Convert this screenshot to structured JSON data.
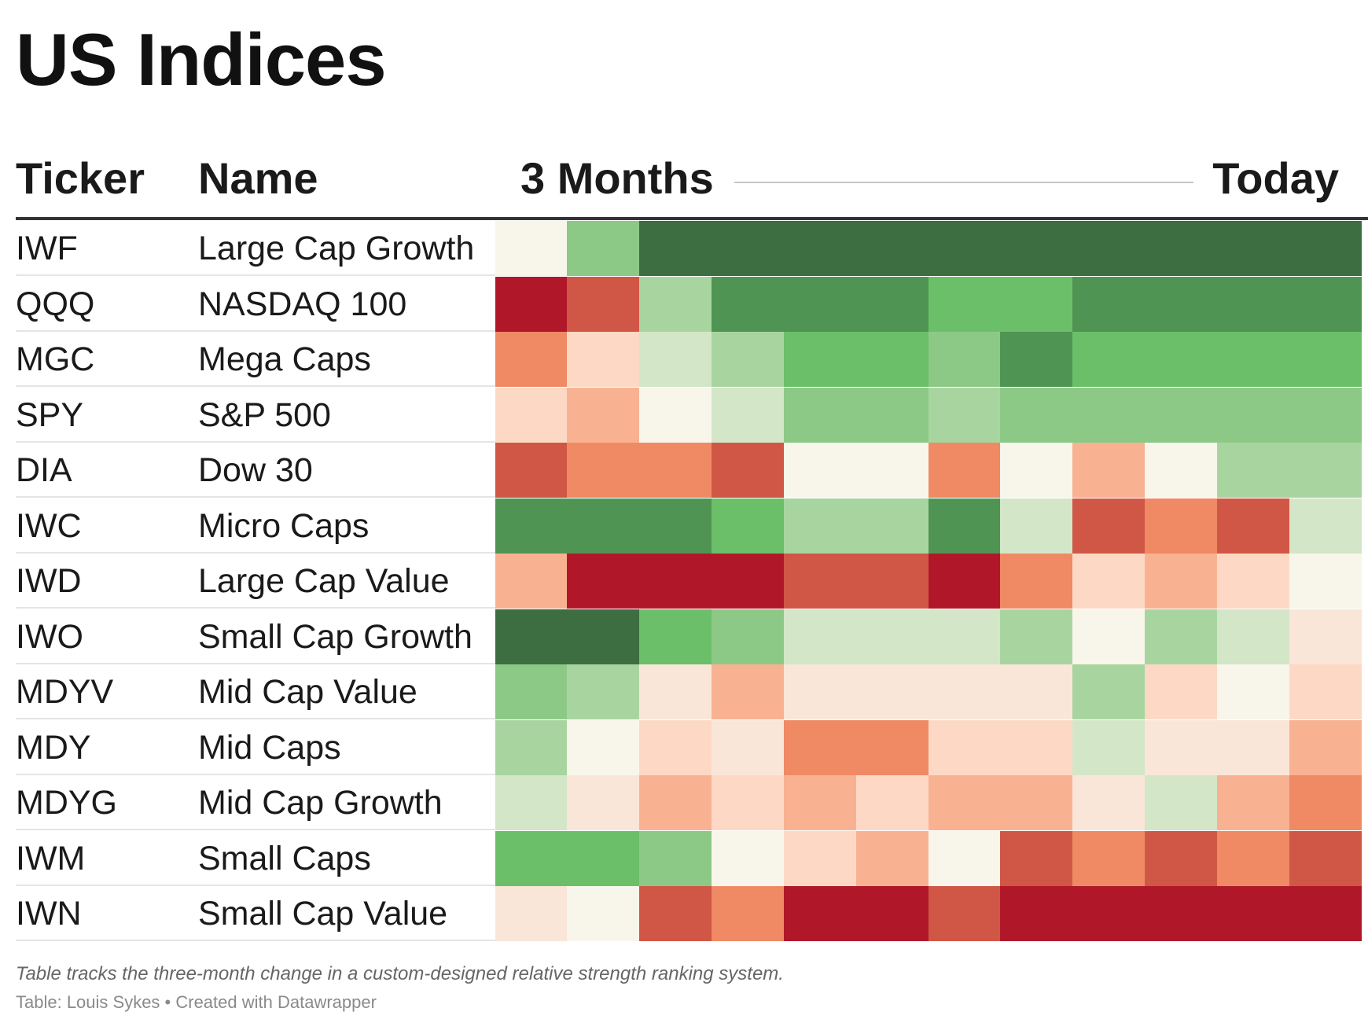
{
  "header": {
    "title": "US Indices",
    "col_ticker": "Ticker",
    "col_name": "Name",
    "period_start": "3 Months",
    "period_end": "Today"
  },
  "footer": {
    "note": "Table tracks the three-month change in a custom-designed relative strength ranking system.",
    "credit": "Table: Louis Sykes • Created with Datawrapper"
  },
  "palette": [
    "#b01829",
    "#d05746",
    "#ef8a64",
    "#f8b292",
    "#fdd9c5",
    "#fae6d8",
    "#f8f6ea",
    "#d3e6c7",
    "#a8d59f",
    "#8dc986",
    "#6bbf69",
    "#509453",
    "#3c6e42"
  ],
  "chart_data": {
    "type": "heatmap",
    "title": "US Indices",
    "xlabel": "",
    "ylabel": "",
    "x": [
      "3 Months",
      "",
      "",
      "",
      "",
      "",
      "",
      "",
      "",
      "",
      "",
      "Today"
    ],
    "color_scale_note": "",
    "rows": [
      {
        "ticker": "IWF",
        "name": "Large Cap Growth",
        "values": [
          6,
          9,
          12,
          12,
          12,
          12,
          12,
          12,
          12,
          12,
          12,
          12
        ]
      },
      {
        "ticker": "QQQ",
        "name": "NASDAQ 100",
        "values": [
          0,
          1,
          8,
          11,
          11,
          11,
          10,
          10,
          11,
          11,
          11,
          11
        ]
      },
      {
        "ticker": "MGC",
        "name": "Mega Caps",
        "values": [
          2,
          4,
          7,
          8,
          10,
          10,
          9,
          11,
          10,
          10,
          10,
          10
        ]
      },
      {
        "ticker": "SPY",
        "name": "S&P 500",
        "values": [
          4,
          3,
          6,
          7,
          9,
          9,
          8,
          9,
          9,
          9,
          9,
          9
        ]
      },
      {
        "ticker": "DIA",
        "name": "Dow 30",
        "values": [
          1,
          2,
          2,
          1,
          6,
          6,
          2,
          6,
          3,
          6,
          8,
          8
        ]
      },
      {
        "ticker": "IWC",
        "name": "Micro Caps",
        "values": [
          11,
          11,
          11,
          10,
          8,
          8,
          11,
          7,
          1,
          2,
          1,
          7
        ]
      },
      {
        "ticker": "IWD",
        "name": "Large Cap Value",
        "values": [
          3,
          0,
          0,
          0,
          1,
          1,
          0,
          2,
          4,
          3,
          4,
          6
        ]
      },
      {
        "ticker": "IWO",
        "name": "Small Cap Growth",
        "values": [
          12,
          12,
          10,
          9,
          7,
          7,
          7,
          8,
          6,
          8,
          7,
          5
        ]
      },
      {
        "ticker": "MDYV",
        "name": "Mid Cap Value",
        "values": [
          9,
          8,
          5,
          3,
          5,
          5,
          5,
          5,
          8,
          4,
          6,
          4
        ]
      },
      {
        "ticker": "MDY",
        "name": "Mid Caps",
        "values": [
          8,
          6,
          4,
          5,
          2,
          2,
          4,
          4,
          7,
          5,
          5,
          3
        ]
      },
      {
        "ticker": "MDYG",
        "name": "Mid Cap Growth",
        "values": [
          7,
          5,
          3,
          4,
          3,
          4,
          3,
          3,
          5,
          7,
          3,
          2
        ]
      },
      {
        "ticker": "IWM",
        "name": "Small Caps",
        "values": [
          10,
          10,
          9,
          6,
          4,
          3,
          6,
          1,
          2,
          1,
          2,
          1
        ]
      },
      {
        "ticker": "IWN",
        "name": "Small Cap Value",
        "values": [
          5,
          6,
          1,
          2,
          0,
          0,
          1,
          0,
          0,
          0,
          0,
          0
        ]
      }
    ]
  }
}
